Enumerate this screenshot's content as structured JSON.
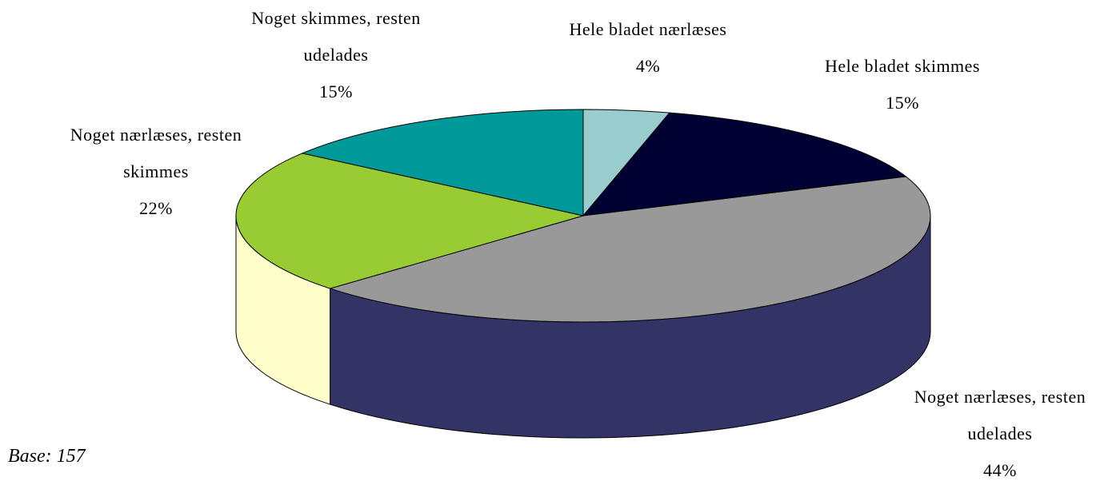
{
  "chart_data": {
    "type": "pie3d",
    "categories": [
      "Hele bladet nærlæses",
      "Hele bladet skimmes",
      "Noget nærlæses, resten udelades",
      "Noget nærlæses, resten skimmes",
      "Noget skimmes, resten udelades"
    ],
    "values": [
      4,
      15,
      44,
      22,
      15
    ],
    "value_labels": [
      "4%",
      "15%",
      "44%",
      "22%",
      "15%"
    ],
    "colors": [
      "#99cccc",
      "#000033",
      "#999999",
      "#99cc33",
      "#009999"
    ],
    "side_colors": [
      "#99cccc",
      "#000033",
      "#333366",
      "#ffffcc",
      "#009999"
    ],
    "annotation": "Base: 157"
  }
}
